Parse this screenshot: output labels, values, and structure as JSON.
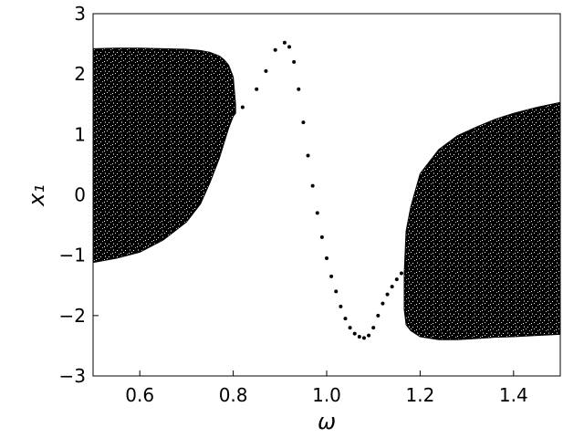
{
  "chart_data": {
    "type": "scatter",
    "xlabel": "ω",
    "ylabel": "x₁",
    "xlim": [
      0.5,
      1.5
    ],
    "ylim": [
      -3,
      3
    ],
    "xticks": [
      0.6,
      0.8,
      {
        "value": 1,
        "label": "1.0"
      },
      1.2,
      1.4
    ],
    "yticks": [
      {
        "value": -3,
        "label": "−3"
      },
      {
        "value": -2,
        "label": "−2"
      },
      {
        "value": -1,
        "label": "−1"
      },
      0,
      1,
      2,
      3
    ],
    "grid": false,
    "color": "#000000",
    "x": [
      0.8,
      0.82,
      0.85,
      0.87,
      0.89,
      0.91,
      0.92,
      0.93,
      0.94,
      0.95,
      0.96,
      0.97,
      0.98,
      0.99,
      1.0,
      1.01,
      1.02,
      1.03,
      1.04,
      1.05,
      1.06,
      1.07,
      1.08,
      1.09,
      1.1,
      1.11,
      1.12,
      1.13,
      1.14,
      1.15,
      1.16,
      1.17
    ],
    "values": [
      1.35,
      1.45,
      1.75,
      2.05,
      2.4,
      2.52,
      2.45,
      2.2,
      1.75,
      1.2,
      0.65,
      0.15,
      -0.3,
      -0.7,
      -1.05,
      -1.35,
      -1.6,
      -1.85,
      -2.05,
      -2.2,
      -2.3,
      -2.35,
      -2.37,
      -2.33,
      -2.2,
      -2.0,
      -1.8,
      -1.65,
      -1.52,
      -1.4,
      -1.3,
      -1.2
    ],
    "bands": [
      {
        "x": [
          0.5,
          0.55,
          0.6,
          0.65,
          0.7,
          0.73,
          0.75,
          0.77,
          0.78,
          0.79,
          0.8,
          0.805
        ],
        "upper": [
          2.42,
          2.43,
          2.43,
          2.42,
          2.41,
          2.39,
          2.36,
          2.3,
          2.24,
          2.15,
          1.95,
          1.5
        ],
        "lower": [
          -1.12,
          -1.05,
          -0.95,
          -0.75,
          -0.45,
          -0.15,
          0.2,
          0.6,
          0.85,
          1.1,
          1.3,
          1.35
        ]
      },
      {
        "x": [
          1.166,
          1.17,
          1.18,
          1.2,
          1.24,
          1.28,
          1.32,
          1.36,
          1.4,
          1.45,
          1.5
        ],
        "upper": [
          -1.3,
          -0.6,
          -0.2,
          0.35,
          0.75,
          0.98,
          1.12,
          1.25,
          1.35,
          1.45,
          1.53
        ],
        "lower": [
          -1.9,
          -2.15,
          -2.25,
          -2.35,
          -2.4,
          -2.4,
          -2.38,
          -2.36,
          -2.35,
          -2.33,
          -2.31
        ]
      }
    ]
  }
}
